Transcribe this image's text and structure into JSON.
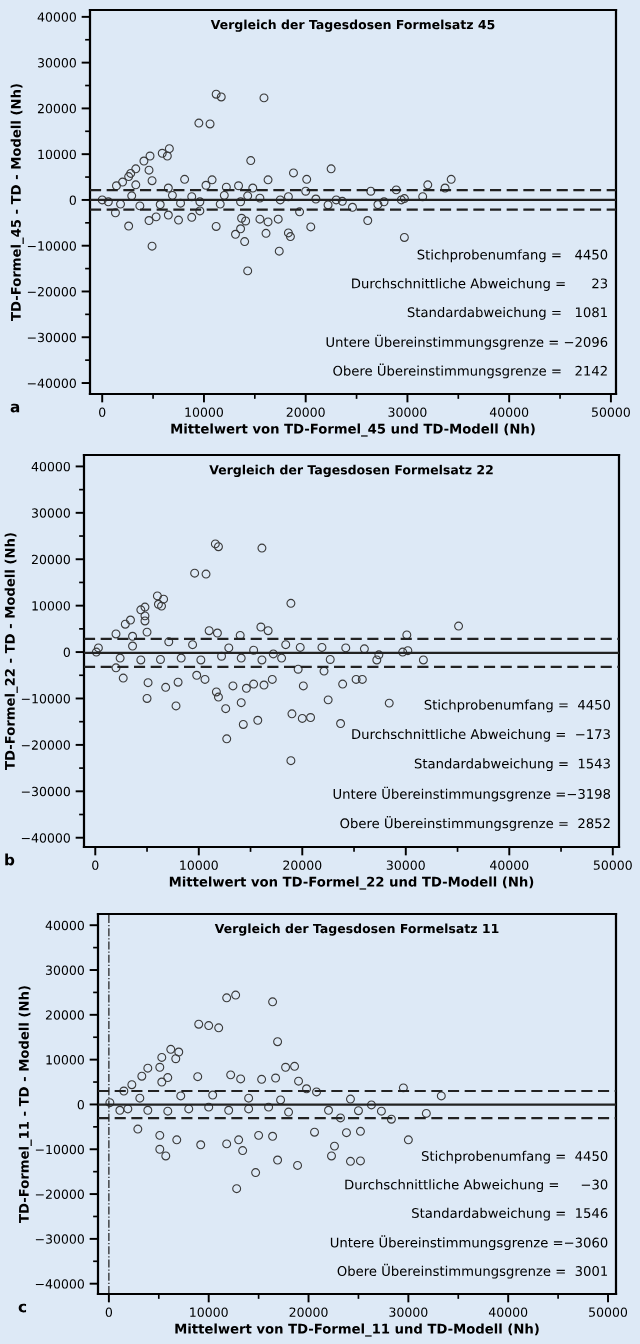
{
  "chart_data": [
    {
      "type": "scatter",
      "title": "Vergleich der Tagesdosen Formelsatz 45",
      "xlabel": "Mittelwert von TD-Formel_45 und TD-Modell (Nh)",
      "ylabel": "TD-Formel_45 - TD - Modell (Nh)",
      "xlim": [
        -1200,
        50500
      ],
      "ylim": [
        -42400,
        41500
      ],
      "xticks": [
        0,
        {
          "value": 5000,
          "label": null
        },
        10000,
        {
          "value": 15000,
          "label": null
        },
        20000,
        {
          "value": 25000,
          "label": null
        },
        30000,
        {
          "value": 35000,
          "label": null
        },
        40000,
        {
          "value": 45000,
          "label": null
        },
        50000
      ],
      "yticks": [
        {
          "value": -40000,
          "label": "−40000"
        },
        {
          "value": -35000,
          "label": null
        },
        {
          "value": -30000,
          "label": "−30000"
        },
        {
          "value": -25000,
          "label": null
        },
        {
          "value": -20000,
          "label": "−20000"
        },
        {
          "value": -15000,
          "label": null
        },
        {
          "value": -10000,
          "label": "−10000"
        },
        {
          "value": -5000,
          "label": null
        },
        0,
        {
          "value": 5000,
          "label": null
        },
        10000,
        {
          "value": 15000,
          "label": null
        },
        20000,
        {
          "value": 25000,
          "label": null
        },
        30000,
        {
          "value": 35000,
          "label": null
        },
        40000
      ],
      "marker": "circle",
      "grid": false,
      "legend": false,
      "series": [
        {
          "color": "#3a3a3a",
          "x": [
            11200,
            11700,
            15900,
            9500,
            10600,
            6600,
            5900,
            6400,
            4700,
            4100,
            4600,
            3300,
            2800,
            2600,
            2000,
            1400,
            14600,
            22500,
            18800,
            20100,
            16300,
            34300,
            32000,
            33700,
            31500,
            28900,
            26400,
            8100,
            10800,
            4900,
            13400,
            12200,
            10200,
            6500,
            3300,
            14800,
            20000,
            24600,
            29700,
            29400,
            27100,
            23600,
            22200,
            19400,
            26100,
            29700,
            20500,
            18500,
            18300,
            17400,
            17300,
            16300,
            16100,
            15500,
            14000,
            13600,
            14100,
            13700,
            13100,
            14300,
            11200,
            9600,
            8800,
            7500,
            6500,
            5300,
            4600,
            4900,
            2600,
            1300,
            0,
            600,
            1800,
            3700,
            5700,
            7700,
            9600,
            11600,
            13600,
            15500,
            17500,
            2900,
            6900,
            8800,
            12000,
            14300,
            18300,
            21000,
            23000,
            27700
          ],
          "values": [
            23100,
            22500,
            22300,
            16800,
            16600,
            11200,
            10200,
            9600,
            9600,
            8500,
            6500,
            6800,
            5800,
            5100,
            3900,
            3100,
            8600,
            6800,
            5900,
            4500,
            4400,
            4500,
            3300,
            2600,
            700,
            2200,
            1900,
            4500,
            4400,
            4200,
            3100,
            2800,
            3200,
            2600,
            3300,
            2600,
            1900,
            -1600,
            300,
            0,
            -1000,
            -300,
            -1100,
            -2600,
            -4500,
            -8200,
            -5900,
            -8000,
            -7200,
            -11200,
            -4200,
            -4800,
            -7300,
            -4200,
            -9100,
            -6300,
            -4600,
            -4000,
            -7500,
            -15500,
            -5800,
            -2400,
            -3800,
            -4400,
            -3300,
            -3700,
            -4500,
            -10100,
            -5700,
            -2800,
            0,
            -400,
            -900,
            -1300,
            -1000,
            -700,
            -400,
            -900,
            -400,
            400,
            0,
            900,
            1000,
            700,
            1000,
            900,
            700,
            200,
            0,
            -400
          ]
        }
      ],
      "ref_lines": [
        {
          "axis": "y",
          "value": 23,
          "line_style": "solid"
        },
        {
          "axis": "y",
          "value": 2142,
          "line_style": "dashed"
        },
        {
          "axis": "y",
          "value": -2096,
          "line_style": "dashed"
        }
      ],
      "annotations": [
        "Stichprobenumfang =   4450",
        "Durchschnittliche Abweichung =      23",
        "Standardabweichung =   1081",
        "Untere Übereinstimmungsgrenze = −2096",
        "Obere Übereinstimmungsgrenze =   2142",
        "a"
      ]
    },
    {
      "type": "scatter",
      "title": "Vergleich der Tagesdosen Formelsatz 22",
      "xlabel": "Mittelwert von TD-Formel_22 und TD-Modell (Nh)",
      "ylabel": "TD-Formel_22 - TD - Modell (Nh)",
      "xlim": [
        -1090,
        50600
      ],
      "ylim": [
        -42000,
        42460
      ],
      "xticks": [
        0,
        {
          "value": 5000,
          "label": null
        },
        10000,
        {
          "value": 15000,
          "label": null
        },
        20000,
        {
          "value": 25000,
          "label": null
        },
        30000,
        {
          "value": 35000,
          "label": null
        },
        40000,
        {
          "value": 45000,
          "label": null
        },
        50000
      ],
      "yticks": [
        {
          "value": -40000,
          "label": "−40000"
        },
        {
          "value": -35000,
          "label": null
        },
        {
          "value": -30000,
          "label": "−30000"
        },
        {
          "value": -25000,
          "label": null
        },
        {
          "value": -20000,
          "label": "−20000"
        },
        {
          "value": -15000,
          "label": null
        },
        {
          "value": -10000,
          "label": "−10000"
        },
        {
          "value": -5000,
          "label": null
        },
        0,
        {
          "value": 5000,
          "label": null
        },
        10000,
        {
          "value": 15000,
          "label": null
        },
        20000,
        {
          "value": 25000,
          "label": null
        },
        30000,
        {
          "value": 35000,
          "label": null
        },
        40000
      ],
      "marker": "circle",
      "grid": false,
      "legend": false,
      "series": [
        {
          "color": "#3a3a3a",
          "x": [
            11600,
            11900,
            16100,
            9600,
            10700,
            6000,
            6600,
            6100,
            6400,
            4800,
            4400,
            4800,
            4800,
            3400,
            2900,
            2000,
            18900,
            35100,
            30100,
            16000,
            16700,
            11000,
            11800,
            14000,
            5000,
            3600,
            18400,
            19800,
            21900,
            24200,
            26000,
            29700,
            30200,
            27400,
            27200,
            31700,
            22700,
            22100,
            19600,
            20100,
            23900,
            25200,
            25800,
            28400,
            22500,
            19000,
            20000,
            20800,
            23700,
            18900,
            15700,
            14300,
            14100,
            12700,
            12600,
            11900,
            11700,
            13300,
            14600,
            15300,
            16300,
            17100,
            10600,
            9800,
            7800,
            8000,
            6800,
            5100,
            5000,
            2700,
            2000,
            100,
            300,
            2400,
            4400,
            6300,
            8300,
            10200,
            12200,
            14100,
            16100,
            18000,
            3600,
            7100,
            9400,
            12900,
            15300,
            17200
          ],
          "values": [
            23300,
            22700,
            22400,
            17000,
            16800,
            12100,
            11400,
            10300,
            9900,
            9700,
            9100,
            7800,
            6700,
            6900,
            6000,
            3900,
            10500,
            5600,
            3700,
            5400,
            4600,
            4600,
            4100,
            3600,
            4300,
            3400,
            1600,
            1000,
            1000,
            900,
            700,
            0,
            300,
            -600,
            -1700,
            -1700,
            -1600,
            -4100,
            -3700,
            -7300,
            -6900,
            -5900,
            -5900,
            -11000,
            -10300,
            -13300,
            -14300,
            -14100,
            -15400,
            -23400,
            -14700,
            -15600,
            -10900,
            -18700,
            -12200,
            -9700,
            -8600,
            -7300,
            -7800,
            -6900,
            -7100,
            -5900,
            -5900,
            -5000,
            -11600,
            -6500,
            -7600,
            -6600,
            -10000,
            -5600,
            -3400,
            0,
            900,
            -1300,
            -1700,
            -1600,
            -1300,
            -1700,
            -900,
            -1300,
            -1700,
            -1300,
            1300,
            2200,
            1600,
            900,
            400,
            -400
          ]
        }
      ],
      "ref_lines": [
        {
          "axis": "y",
          "value": -173,
          "line_style": "solid"
        },
        {
          "axis": "y",
          "value": 2852,
          "line_style": "dashed"
        },
        {
          "axis": "y",
          "value": -3198,
          "line_style": "dashed"
        }
      ],
      "annotations": [
        "Stichprobenumfang =  4450",
        "Durchschnittliche Abweichung =  −173",
        "Standardabweichung =  1543",
        "Untere Übereinstimmungsgrenze =−3198",
        "Obere Übereinstimmungsgrenze =  2852",
        "b"
      ]
    },
    {
      "type": "scatter",
      "title": "Vergleich der Tagesdosen Formelsatz 11",
      "xlabel": "Mittelwert von TD-Formel_11 und TD-Modell (Nh)",
      "ylabel": "TD-Formel_11 - TD - Modell (Nh)",
      "xlim": [
        -1090,
        50800
      ],
      "ylim": [
        -42300,
        42500
      ],
      "xticks": [
        0,
        {
          "value": 5000,
          "label": null
        },
        10000,
        {
          "value": 15000,
          "label": null
        },
        20000,
        {
          "value": 25000,
          "label": null
        },
        30000,
        {
          "value": 35000,
          "label": null
        },
        40000,
        {
          "value": 45000,
          "label": null
        },
        50000
      ],
      "yticks": [
        {
          "value": -40000,
          "label": "−40000"
        },
        {
          "value": -35000,
          "label": null
        },
        {
          "value": -30000,
          "label": "−30000"
        },
        {
          "value": -25000,
          "label": null
        },
        {
          "value": -20000,
          "label": "−20000"
        },
        {
          "value": -15000,
          "label": null
        },
        {
          "value": -10000,
          "label": "−10000"
        },
        {
          "value": -5000,
          "label": null
        },
        0,
        {
          "value": 5000,
          "label": null
        },
        10000,
        {
          "value": 15000,
          "label": null
        },
        20000,
        {
          "value": 25000,
          "label": null
        },
        30000,
        {
          "value": 35000,
          "label": null
        },
        40000
      ],
      "marker": "circle",
      "grid": false,
      "legend": false,
      "series": [
        {
          "color": "#3a3a3a",
          "x": [
            11800,
            12700,
            16400,
            9000,
            10000,
            11000,
            16900,
            6200,
            7000,
            6700,
            5300,
            5100,
            3900,
            17700,
            18600,
            19000,
            16700,
            15300,
            13200,
            12200,
            8900,
            5900,
            5300,
            3300,
            2300,
            1500,
            29500,
            33300,
            20800,
            19800,
            24200,
            31800,
            28300,
            27300,
            26300,
            25000,
            23200,
            22000,
            20600,
            23800,
            25200,
            30000,
            22600,
            22300,
            24200,
            25200,
            18900,
            16900,
            12800,
            14700,
            13400,
            11800,
            13000,
            15000,
            16400,
            9200,
            6800,
            5100,
            5700,
            5100,
            2900,
            1100,
            100,
            1900,
            3900,
            5900,
            8000,
            10000,
            12000,
            14000,
            16000,
            18000,
            3100,
            7200,
            10400,
            14000,
            17200
          ],
          "values": [
            23800,
            24400,
            22900,
            17900,
            17600,
            17100,
            14000,
            12300,
            11700,
            10200,
            10500,
            8300,
            8100,
            8300,
            8500,
            5200,
            5900,
            5600,
            5700,
            6600,
            6200,
            6000,
            5000,
            6300,
            4400,
            3000,
            3700,
            1900,
            2800,
            3500,
            1200,
            -2000,
            -3300,
            -1500,
            -100,
            -1400,
            -3000,
            -1300,
            -6200,
            -6300,
            -6000,
            -7900,
            -9300,
            -11500,
            -12700,
            -12600,
            -13600,
            -12400,
            -18800,
            -15200,
            -10300,
            -8800,
            -7900,
            -6900,
            -7100,
            -9000,
            -7900,
            -10000,
            -11500,
            -6900,
            -5500,
            -1300,
            400,
            -1000,
            -1300,
            -1500,
            -1000,
            -600,
            -1300,
            -1000,
            -600,
            -1700,
            1400,
            1900,
            2100,
            1400,
            1000
          ]
        }
      ],
      "ref_lines": [
        {
          "axis": "x",
          "value": 0,
          "line_style": "dashdot"
        },
        {
          "axis": "y",
          "value": -30,
          "line_style": "solid"
        },
        {
          "axis": "y",
          "value": 3001,
          "line_style": "dashed"
        },
        {
          "axis": "y",
          "value": -3060,
          "line_style": "dashed"
        }
      ],
      "annotations": [
        "Stichprobenumfang =  4450",
        "Durchschnittliche Abweichung =     −30",
        "Standardabweichung =  1546",
        "Untere Übereinstimmungsgrenze =−3060",
        "Obere Übereinstimmungsgrenze =  3001",
        "c"
      ]
    }
  ]
}
